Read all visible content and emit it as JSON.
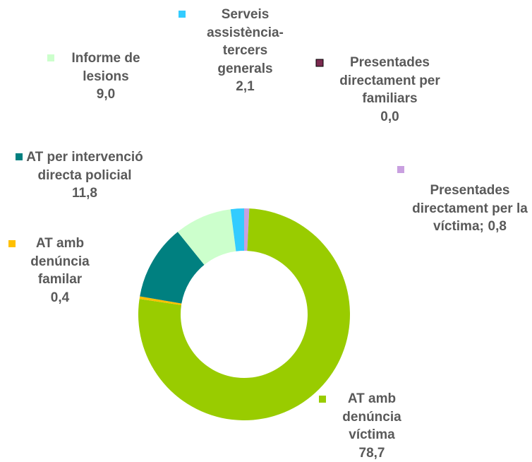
{
  "chart_data": {
    "type": "donut",
    "categories": [
      "Presentades directament per familiars",
      "Presentades directament per la víctima;",
      "AT amb denúncia víctima",
      "AT amb denúncia familar",
      "AT per intervenció directa policial",
      "Informe de lesions",
      "Serveis assistència-tercers generals"
    ],
    "values": [
      0.0,
      0.8,
      78.7,
      0.4,
      11.8,
      9.0,
      2.1
    ],
    "value_labels": [
      "0,0",
      "0,8",
      "78,7",
      "0,4",
      "11,8",
      "9,0",
      "2,1"
    ],
    "colors": [
      "#7b2a4f",
      "#c9a0e0",
      "#99cc00",
      "#ffc000",
      "#008080",
      "#ccffcc",
      "#33ccff"
    ]
  }
}
